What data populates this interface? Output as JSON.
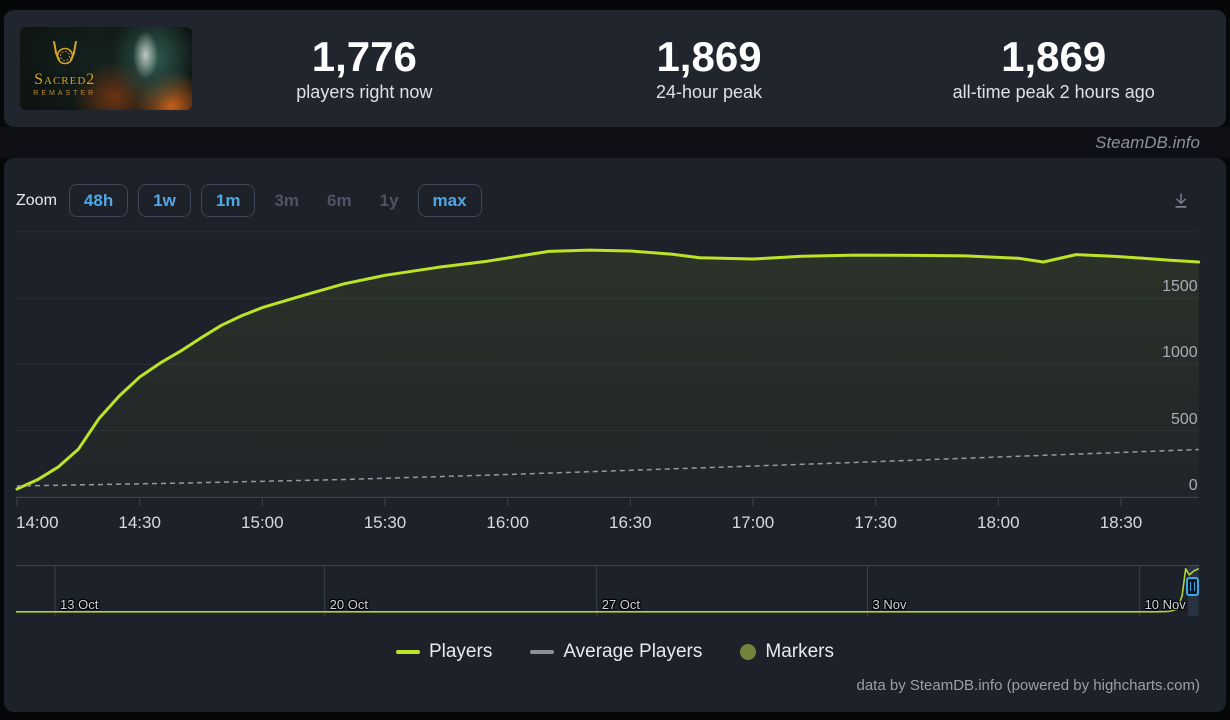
{
  "header": {
    "game": {
      "name": "Sacred 2 Remaster",
      "logo_line1": "Sacred2",
      "logo_line2": "REMASTER"
    },
    "stats": [
      {
        "value": "1,776",
        "label": "players right now"
      },
      {
        "value": "1,869",
        "label": "24-hour peak"
      },
      {
        "value": "1,869",
        "label": "all-time peak 2 hours ago"
      }
    ]
  },
  "brand": {
    "label": "SteamDB.info"
  },
  "toolbar": {
    "zoom_label": "Zoom",
    "buttons": [
      {
        "label": "48h",
        "enabled": true
      },
      {
        "label": "1w",
        "enabled": true
      },
      {
        "label": "1m",
        "enabled": true
      },
      {
        "label": "3m",
        "enabled": false
      },
      {
        "label": "6m",
        "enabled": false
      },
      {
        "label": "1y",
        "enabled": false
      },
      {
        "label": "max",
        "enabled": true
      }
    ],
    "download_icon": "download-icon"
  },
  "chart_data": {
    "type": "line",
    "title": "",
    "y_axis": {
      "tick_values": [
        0,
        500,
        1000,
        1500
      ],
      "tick_labels": [
        "0",
        "500",
        "1000",
        "1500"
      ],
      "grid_values": [
        0,
        500,
        1000,
        1500,
        2000
      ],
      "max": 2000
    },
    "x_axis": {
      "unit": "time of day",
      "tick_labels": [
        "14:00",
        "14:30",
        "15:00",
        "15:30",
        "16:00",
        "16:30",
        "17:00",
        "17:30",
        "18:00",
        "18:30"
      ],
      "interval_minutes": 30
    },
    "series": [
      {
        "name": "Players",
        "color": "#bce427",
        "style": "solid",
        "x_unit": "minutes after 14:00",
        "points": [
          [
            0,
            60
          ],
          [
            5,
            130
          ],
          [
            10,
            225
          ],
          [
            15,
            360
          ],
          [
            20,
            590
          ],
          [
            25,
            762
          ],
          [
            30,
            905
          ],
          [
            35,
            1010
          ],
          [
            40,
            1100
          ],
          [
            45,
            1200
          ],
          [
            50,
            1295
          ],
          [
            55,
            1368
          ],
          [
            60,
            1428
          ],
          [
            70,
            1520
          ],
          [
            80,
            1608
          ],
          [
            90,
            1672
          ],
          [
            103,
            1732
          ],
          [
            115,
            1778
          ],
          [
            130,
            1852
          ],
          [
            140,
            1862
          ],
          [
            150,
            1855
          ],
          [
            160,
            1832
          ],
          [
            167,
            1805
          ],
          [
            180,
            1795
          ],
          [
            192,
            1815
          ],
          [
            205,
            1824
          ],
          [
            220,
            1822
          ],
          [
            232,
            1818
          ],
          [
            245,
            1800
          ],
          [
            251,
            1772
          ],
          [
            259,
            1828
          ],
          [
            268,
            1815
          ],
          [
            275,
            1802
          ],
          [
            282,
            1786
          ],
          [
            289,
            1772
          ]
        ]
      },
      {
        "name": "Average Players",
        "color": "#949ba5",
        "style": "dashed",
        "x_unit": "minutes after 14:00",
        "points": [
          [
            0,
            83
          ],
          [
            40,
            105
          ],
          [
            80,
            132
          ],
          [
            120,
            170
          ],
          [
            160,
            212
          ],
          [
            200,
            255
          ],
          [
            240,
            302
          ],
          [
            265,
            330
          ],
          [
            289,
            358
          ]
        ]
      }
    ],
    "navigator": {
      "date_labels": [
        "13 Oct",
        "20 Oct",
        "27 Oct",
        "3 Nov",
        "10 Nov"
      ],
      "date_fractions": [
        0.033,
        0.261,
        0.491,
        0.72,
        0.95
      ],
      "series_color": "#b3d435",
      "y_max": 1900,
      "series": [
        [
          0,
          8
        ],
        [
          0.5,
          8
        ],
        [
          0.9,
          8
        ],
        [
          0.965,
          10
        ],
        [
          0.975,
          25
        ],
        [
          0.982,
          120
        ],
        [
          0.986,
          700
        ],
        [
          0.989,
          1869
        ],
        [
          0.992,
          1600
        ],
        [
          0.996,
          1780
        ],
        [
          1,
          1869
        ]
      ],
      "selection_start_fraction": 0.991
    },
    "legend_position": "bottom",
    "grid": true
  },
  "legend": {
    "items": [
      {
        "label": "Players",
        "swatch": "line",
        "color": "#bce427"
      },
      {
        "label": "Average Players",
        "swatch": "line",
        "color": "#8b929b"
      },
      {
        "label": "Markers",
        "swatch": "circle",
        "color": "#72843c"
      }
    ]
  },
  "footer": {
    "credit": "data by SteamDB.info (powered by highcharts.com)"
  }
}
